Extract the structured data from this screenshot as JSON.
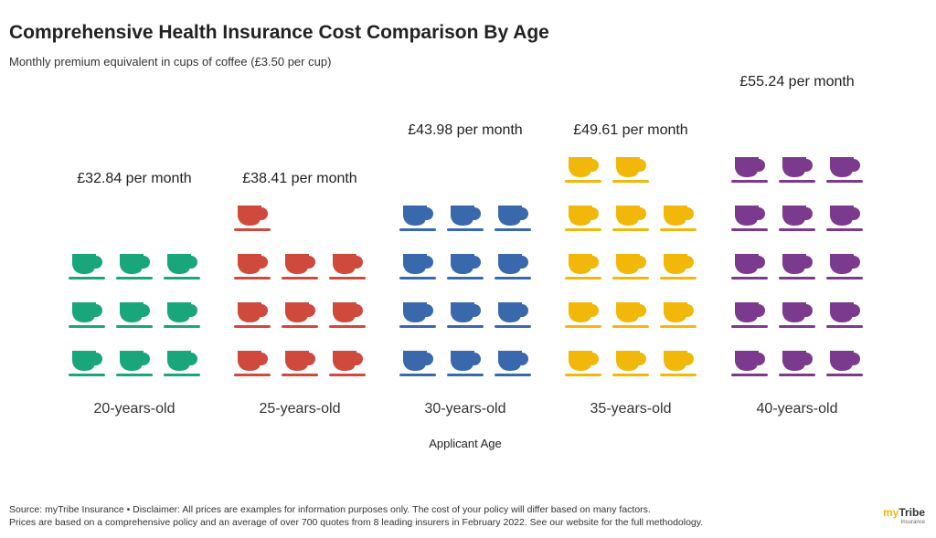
{
  "header": {
    "title": "Comprehensive Health Insurance Cost Comparison By Age",
    "subtitle": "Monthly premium equivalent in cups of coffee (£3.50 per cup)"
  },
  "chart_data": {
    "type": "pictogram",
    "unit_price": 3.5,
    "icon": "coffee-cup-icon",
    "xlabel": "Applicant Age",
    "categories": [
      "20-years-old",
      "25-years-old",
      "30-years-old",
      "35-years-old",
      "40-years-old"
    ],
    "values": [
      32.84,
      38.41,
      43.98,
      49.61,
      55.24
    ],
    "value_labels": [
      "£32.84 per month",
      "£38.41 per month",
      "£43.98 per month",
      "£49.61 per month",
      "£55.24 per month"
    ],
    "colors": [
      "#18a67a",
      "#cf4a3c",
      "#3a68ad",
      "#f1b80a",
      "#7b3a8d"
    ]
  },
  "footer": {
    "line1": "Source: myTribe Insurance • Disclaimer: All prices are examples for information purposes only. The cost of your policy will differ based on many factors.",
    "line2": "Prices are based on a comprehensive policy and an average of over 700 quotes from 8 leading insurers in February 2022. See our website for the full methodology."
  },
  "logo": {
    "brand_prefix": "my",
    "brand_suffix": "Tribe",
    "tagline": "Insurance"
  }
}
